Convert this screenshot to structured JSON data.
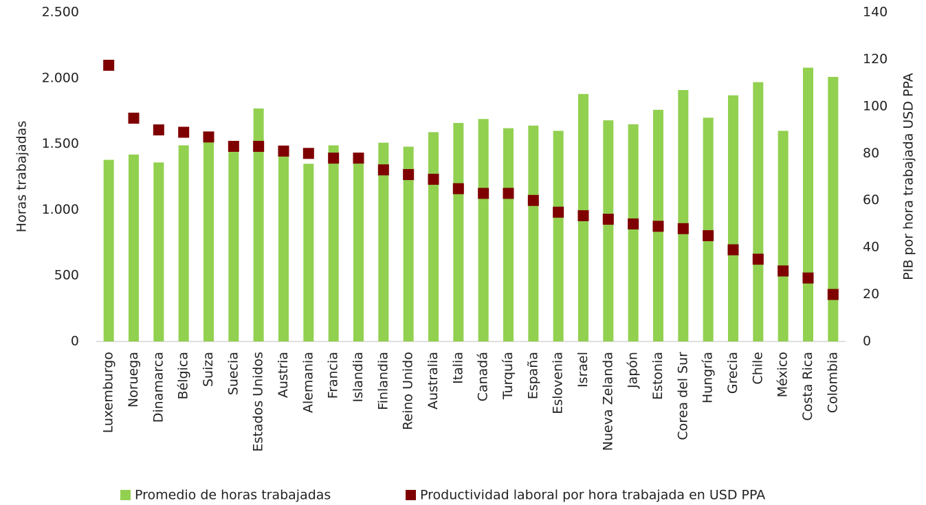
{
  "chart_data": {
    "type": "bar_marker",
    "categories": [
      "Luxemburgo",
      "Noruega",
      "Dinamarca",
      "Bélgica",
      "Suiza",
      "Suecia",
      "Estados Unidos",
      "Austria",
      "Alemania",
      "Francia",
      "Islandia",
      "Finlandia",
      "Reino Unido",
      "Australia",
      "Italia",
      "Canadá",
      "Turquía",
      "España",
      "Eslovenia",
      "Israel",
      "Nueva Zelanda",
      "Japón",
      "Estonia",
      "Corea del Sur",
      "Hungría",
      "Grecia",
      "Chile",
      "México",
      "Costa Rica",
      "Colombia"
    ],
    "series": [
      {
        "name": "Promedio de horas trabajadas",
        "color": "#92d050",
        "axis": "y",
        "values": [
          1380,
          1420,
          1360,
          1490,
          1530,
          1440,
          1770,
          1410,
          1350,
          1490,
          1360,
          1510,
          1480,
          1590,
          1660,
          1690,
          1620,
          1640,
          1600,
          1880,
          1680,
          1650,
          1760,
          1910,
          1700,
          1870,
          1970,
          1600,
          2080,
          2010
        ]
      },
      {
        "name": "Productividad laboral por hora trabajada en USD PPA",
        "color": "#7f0000",
        "axis": "y2",
        "values": [
          117.5,
          95,
          90,
          89,
          87,
          83,
          83,
          81,
          80,
          78,
          78,
          73,
          71,
          69,
          65,
          63,
          63,
          60,
          55,
          53.5,
          52,
          50,
          49,
          48,
          45,
          39,
          35,
          30,
          27,
          20
        ]
      }
    ],
    "ylabel": "Horas trabajadas",
    "y2label": "PIB por hora trabajada USD PPA",
    "ylim": [
      0,
      2500
    ],
    "yticks": [
      0,
      500,
      {
        "value": 1000,
        "label": "1.000"
      },
      {
        "value": 1500,
        "label": "1.500"
      },
      {
        "value": 2000,
        "label": "2.000"
      },
      {
        "value": 2500,
        "label": "2.500"
      }
    ],
    "y2lim": [
      0,
      140
    ],
    "y2ticks": [
      0,
      20,
      40,
      60,
      80,
      100,
      120,
      140
    ],
    "legend": "bottom"
  }
}
